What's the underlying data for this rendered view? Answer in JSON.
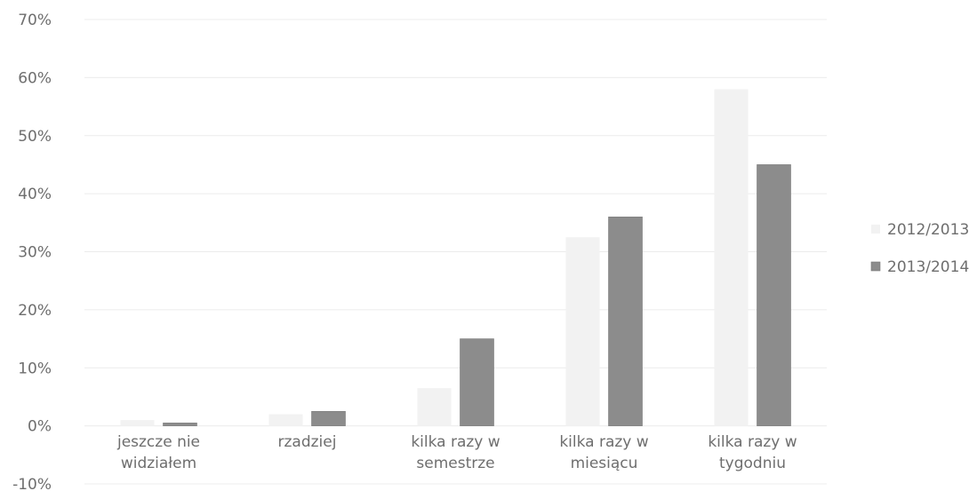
{
  "chart_data": {
    "type": "bar",
    "categories": [
      [
        "jeszcze nie",
        "widziałem"
      ],
      [
        "rzadziej"
      ],
      [
        "kilka razy w",
        "semestrze"
      ],
      [
        "kilka razy w",
        "miesiącu"
      ],
      [
        "kilka razy w",
        "tygodniu"
      ]
    ],
    "series": [
      {
        "name": "2012/2013",
        "color": "#f2f2f2",
        "values": [
          1,
          2,
          6.5,
          32.5,
          58
        ]
      },
      {
        "name": "2013/2014",
        "color": "#8c8c8c",
        "values": [
          0.5,
          2.5,
          15,
          36,
          45
        ]
      }
    ],
    "yticks": [
      "70%",
      "60%",
      "50%",
      "40%",
      "30%",
      "20%",
      "10%",
      "0%",
      "-10%"
    ],
    "ylim": [
      -10,
      70
    ],
    "legend_position": "right",
    "grid": true
  }
}
